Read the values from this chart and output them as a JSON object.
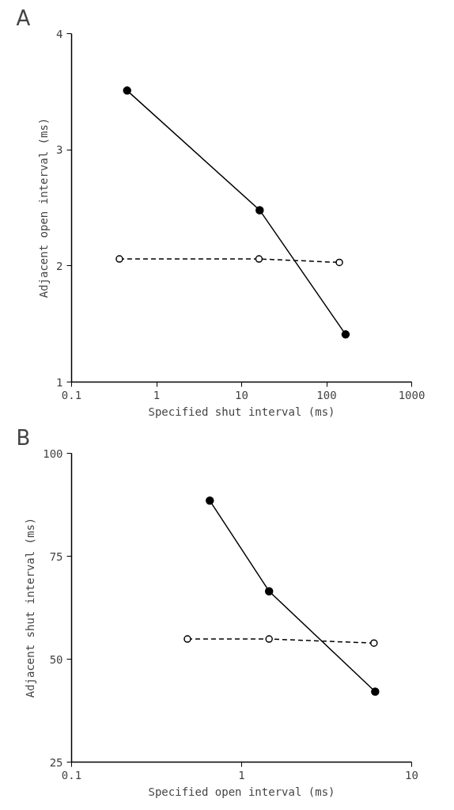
{
  "chart_data": [
    {
      "type": "line",
      "title": "A",
      "xlabel": "Specified shut interval (ms)",
      "ylabel": "Adjacent open interval (ms)",
      "log": "x",
      "xlim": [
        0.1,
        1000
      ],
      "xticks": [
        0.1,
        1,
        10,
        100,
        1000
      ],
      "ylim": [
        1,
        4
      ],
      "yticks": [
        1,
        2,
        3,
        4
      ],
      "grid": false,
      "marker": "circle",
      "series": [
        {
          "color": "#000000",
          "line_style": "solid",
          "x": [
            0.45,
            16.3,
            167
          ],
          "values": [
            3.51,
            2.48,
            1.41
          ]
        },
        {
          "color": "#000000",
          "line_style": "dashed",
          "x": [
            0.365,
            16,
            141
          ],
          "values": [
            2.06,
            2.06,
            2.03
          ]
        }
      ]
    },
    {
      "type": "line",
      "title": "B",
      "xlabel": "Specified open interval (ms)",
      "ylabel": "Adjacent shut interval (ms)",
      "log": "x",
      "xlim": [
        0.1,
        10
      ],
      "xticks": [
        0.1,
        1,
        10
      ],
      "ylim": [
        25,
        100
      ],
      "yticks": [
        25,
        50,
        75,
        100
      ],
      "grid": false,
      "marker": "circle",
      "series": [
        {
          "color": "#000000",
          "line_style": "solid",
          "x": [
            0.65,
            1.45,
            6.1
          ],
          "values": [
            88.5,
            66.5,
            42.1
          ]
        },
        {
          "color": "#000000",
          "line_style": "dashed",
          "x": [
            0.48,
            1.45,
            6.0
          ],
          "values": [
            54.9,
            54.9,
            53.9
          ]
        }
      ]
    }
  ]
}
